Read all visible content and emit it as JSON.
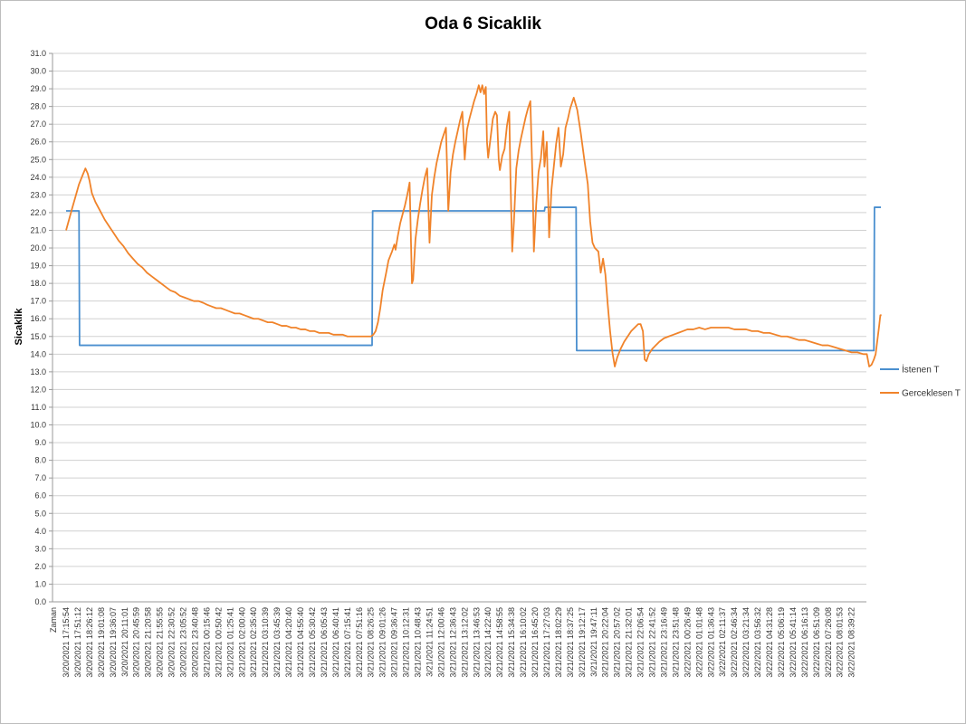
{
  "chart_data": {
    "type": "line",
    "title": "Oda 6 Sicaklik",
    "xlabel": "Zaman",
    "ylabel": "Sicaklik",
    "ylim": [
      0,
      31
    ],
    "ytick_step": 1,
    "grid": "horizontal",
    "legend_position": "right",
    "x_tick_labels": [
      "3/20/2021 17:15:54",
      "3/20/2021 17:51:12",
      "3/20/2021 18:26:12",
      "3/20/2021 19:01:08",
      "3/20/2021 19:36:07",
      "3/20/2021 20:11:01",
      "3/20/2021 20:45:59",
      "3/20/2021 21:20:58",
      "3/20/2021 21:55:55",
      "3/20/2021 22:30:52",
      "3/20/2021 23:05:52",
      "3/20/2021 23:40:48",
      "3/21/2021 00:15:46",
      "3/21/2021 00:50:42",
      "3/21/2021 01:25:41",
      "3/21/2021 02:00:40",
      "3/21/2021 02:35:40",
      "3/21/2021 03:10:39",
      "3/21/2021 03:45:39",
      "3/21/2021 04:20:40",
      "3/21/2021 04:55:40",
      "3/21/2021 05:30:42",
      "3/21/2021 06:05:43",
      "3/21/2021 06:40:41",
      "3/21/2021 07:15:41",
      "3/21/2021 07:51:16",
      "3/21/2021 08:26:25",
      "3/21/2021 09:01:26",
      "3/21/2021 09:36:47",
      "3/21/2021 10:12:31",
      "3/21/2021 10:48:43",
      "3/21/2021 11:24:51",
      "3/21/2021 12:00:46",
      "3/21/2021 12:36:43",
      "3/21/2021 13:12:02",
      "3/21/2021 13:46:53",
      "3/21/2021 14:22:40",
      "3/21/2021 14:58:55",
      "3/21/2021 15:34:38",
      "3/21/2021 16:10:02",
      "3/21/2021 16:45:20",
      "3/21/2021 17:27:03",
      "3/21/2021 18:02:29",
      "3/21/2021 18:37:25",
      "3/21/2021 19:12:17",
      "3/21/2021 19:47:11",
      "3/21/2021 20:22:04",
      "3/21/2021 20:57:02",
      "3/21/2021 21:32:01",
      "3/21/2021 22:06:54",
      "3/21/2021 22:41:52",
      "3/21/2021 23:16:49",
      "3/21/2021 23:51:48",
      "3/22/2021 00:26:49",
      "3/22/2021 01:01:48",
      "3/22/2021 01:36:43",
      "3/22/2021 02:11:37",
      "3/22/2021 02:46:34",
      "3/22/2021 03:21:34",
      "3/22/2021 03:56:32",
      "3/22/2021 04:31:28",
      "3/22/2021 05:06:19",
      "3/22/2021 05:41:14",
      "3/22/2021 06:16:13",
      "3/22/2021 06:51:09",
      "3/22/2021 07:26:08",
      "3/22/2021 08:01:53",
      "3/22/2021 08:39:22"
    ],
    "series": [
      {
        "name": "İstenen T",
        "color": "#4a8fcf",
        "points": [
          [
            0,
            22.1
          ],
          [
            1.1,
            22.1
          ],
          [
            1.15,
            14.5
          ],
          [
            26.1,
            14.5
          ],
          [
            26.15,
            22.1
          ],
          [
            40.8,
            22.1
          ],
          [
            40.85,
            22.3
          ],
          [
            43.5,
            22.3
          ],
          [
            43.55,
            14.2
          ],
          [
            68.9,
            14.2
          ],
          [
            68.95,
            22.3
          ],
          [
            69.5,
            22.3
          ]
        ]
      },
      {
        "name": "Gerceklesen T",
        "color": "#f0832a",
        "points": [
          [
            0,
            21.0
          ],
          [
            0.25,
            21.6
          ],
          [
            0.5,
            22.2
          ],
          [
            0.8,
            22.9
          ],
          [
            1.1,
            23.6
          ],
          [
            1.4,
            24.1
          ],
          [
            1.65,
            24.5
          ],
          [
            1.85,
            24.2
          ],
          [
            2.0,
            23.8
          ],
          [
            2.2,
            23.1
          ],
          [
            2.5,
            22.6
          ],
          [
            2.9,
            22.1
          ],
          [
            3.3,
            21.6
          ],
          [
            3.7,
            21.2
          ],
          [
            4.1,
            20.8
          ],
          [
            4.5,
            20.4
          ],
          [
            4.9,
            20.1
          ],
          [
            5.3,
            19.7
          ],
          [
            5.7,
            19.4
          ],
          [
            6.1,
            19.1
          ],
          [
            6.5,
            18.9
          ],
          [
            6.9,
            18.6
          ],
          [
            7.3,
            18.4
          ],
          [
            7.7,
            18.2
          ],
          [
            8.1,
            18.0
          ],
          [
            8.5,
            17.8
          ],
          [
            8.9,
            17.6
          ],
          [
            9.3,
            17.5
          ],
          [
            9.7,
            17.3
          ],
          [
            10.1,
            17.2
          ],
          [
            10.5,
            17.1
          ],
          [
            10.9,
            17.0
          ],
          [
            11.3,
            17.0
          ],
          [
            11.7,
            16.9
          ],
          [
            12.0,
            16.8
          ],
          [
            12.4,
            16.7
          ],
          [
            12.8,
            16.6
          ],
          [
            13.2,
            16.6
          ],
          [
            13.6,
            16.5
          ],
          [
            14.0,
            16.4
          ],
          [
            14.4,
            16.3
          ],
          [
            14.8,
            16.3
          ],
          [
            15.2,
            16.2
          ],
          [
            15.6,
            16.1
          ],
          [
            16.0,
            16.0
          ],
          [
            16.4,
            16.0
          ],
          [
            16.8,
            15.9
          ],
          [
            17.2,
            15.8
          ],
          [
            17.6,
            15.8
          ],
          [
            18.0,
            15.7
          ],
          [
            18.4,
            15.6
          ],
          [
            18.8,
            15.6
          ],
          [
            19.2,
            15.5
          ],
          [
            19.6,
            15.5
          ],
          [
            20.0,
            15.4
          ],
          [
            20.4,
            15.4
          ],
          [
            20.8,
            15.3
          ],
          [
            21.2,
            15.3
          ],
          [
            21.6,
            15.2
          ],
          [
            22.0,
            15.2
          ],
          [
            22.4,
            15.2
          ],
          [
            22.8,
            15.1
          ],
          [
            23.2,
            15.1
          ],
          [
            23.6,
            15.1
          ],
          [
            24.0,
            15.0
          ],
          [
            24.4,
            15.0
          ],
          [
            24.8,
            15.0
          ],
          [
            25.2,
            15.0
          ],
          [
            25.6,
            15.0
          ],
          [
            26.0,
            15.0
          ],
          [
            26.2,
            15.1
          ],
          [
            26.4,
            15.3
          ],
          [
            26.6,
            15.8
          ],
          [
            26.8,
            16.6
          ],
          [
            27.0,
            17.6
          ],
          [
            27.3,
            18.6
          ],
          [
            27.5,
            19.3
          ],
          [
            27.8,
            19.8
          ],
          [
            28.0,
            20.2
          ],
          [
            28.1,
            19.9
          ],
          [
            28.3,
            20.7
          ],
          [
            28.5,
            21.4
          ],
          [
            28.7,
            21.9
          ],
          [
            28.9,
            22.4
          ],
          [
            29.1,
            23.0
          ],
          [
            29.3,
            23.7
          ],
          [
            29.5,
            18.0
          ],
          [
            29.6,
            18.2
          ],
          [
            29.8,
            20.5
          ],
          [
            30.0,
            21.6
          ],
          [
            30.2,
            22.5
          ],
          [
            30.4,
            23.3
          ],
          [
            30.6,
            24.0
          ],
          [
            30.8,
            24.5
          ],
          [
            31.0,
            20.3
          ],
          [
            31.2,
            23.0
          ],
          [
            31.4,
            24.0
          ],
          [
            31.6,
            24.8
          ],
          [
            31.8,
            25.4
          ],
          [
            32.0,
            26.0
          ],
          [
            32.2,
            26.4
          ],
          [
            32.4,
            26.8
          ],
          [
            32.6,
            22.1
          ],
          [
            32.8,
            24.3
          ],
          [
            33.0,
            25.3
          ],
          [
            33.2,
            26.0
          ],
          [
            33.4,
            26.6
          ],
          [
            33.6,
            27.2
          ],
          [
            33.8,
            27.7
          ],
          [
            34.0,
            25.0
          ],
          [
            34.2,
            26.7
          ],
          [
            34.4,
            27.3
          ],
          [
            34.6,
            27.8
          ],
          [
            34.8,
            28.3
          ],
          [
            35.0,
            28.7
          ],
          [
            35.2,
            29.2
          ],
          [
            35.35,
            28.8
          ],
          [
            35.5,
            29.2
          ],
          [
            35.65,
            28.7
          ],
          [
            35.8,
            29.1
          ],
          [
            35.9,
            26.0
          ],
          [
            36.0,
            25.1
          ],
          [
            36.2,
            26.2
          ],
          [
            36.4,
            27.3
          ],
          [
            36.6,
            27.7
          ],
          [
            36.75,
            27.5
          ],
          [
            36.9,
            25.0
          ],
          [
            37.0,
            24.4
          ],
          [
            37.2,
            25.2
          ],
          [
            37.4,
            25.6
          ],
          [
            37.6,
            26.9
          ],
          [
            37.8,
            27.7
          ],
          [
            37.9,
            24.0
          ],
          [
            38.05,
            19.8
          ],
          [
            38.2,
            21.5
          ],
          [
            38.4,
            24.5
          ],
          [
            38.6,
            25.5
          ],
          [
            38.8,
            26.2
          ],
          [
            39.0,
            26.8
          ],
          [
            39.2,
            27.4
          ],
          [
            39.4,
            27.9
          ],
          [
            39.6,
            28.3
          ],
          [
            39.8,
            23.5
          ],
          [
            39.9,
            19.8
          ],
          [
            40.1,
            22.5
          ],
          [
            40.3,
            24.3
          ],
          [
            40.5,
            25.1
          ],
          [
            40.7,
            26.6
          ],
          [
            40.8,
            24.6
          ],
          [
            41.0,
            26.0
          ],
          [
            41.2,
            20.6
          ],
          [
            41.4,
            23.3
          ],
          [
            41.6,
            24.6
          ],
          [
            41.8,
            25.9
          ],
          [
            42.0,
            26.8
          ],
          [
            42.2,
            24.6
          ],
          [
            42.4,
            25.3
          ],
          [
            42.6,
            26.8
          ],
          [
            42.8,
            27.3
          ],
          [
            43.0,
            27.9
          ],
          [
            43.3,
            28.5
          ],
          [
            43.6,
            27.8
          ],
          [
            43.9,
            26.5
          ],
          [
            44.2,
            25.0
          ],
          [
            44.5,
            23.6
          ],
          [
            44.7,
            21.5
          ],
          [
            44.9,
            20.3
          ],
          [
            45.1,
            20.0
          ],
          [
            45.4,
            19.8
          ],
          [
            45.6,
            18.6
          ],
          [
            45.8,
            19.4
          ],
          [
            46.0,
            18.5
          ],
          [
            46.2,
            16.8
          ],
          [
            46.4,
            15.3
          ],
          [
            46.6,
            14.1
          ],
          [
            46.8,
            13.3
          ],
          [
            47.0,
            13.8
          ],
          [
            47.3,
            14.3
          ],
          [
            47.6,
            14.7
          ],
          [
            47.9,
            15.0
          ],
          [
            48.2,
            15.3
          ],
          [
            48.5,
            15.5
          ],
          [
            48.8,
            15.7
          ],
          [
            49.0,
            15.7
          ],
          [
            49.2,
            15.3
          ],
          [
            49.35,
            13.7
          ],
          [
            49.5,
            13.6
          ],
          [
            49.7,
            14.0
          ],
          [
            50.0,
            14.3
          ],
          [
            50.3,
            14.5
          ],
          [
            50.6,
            14.7
          ],
          [
            51.0,
            14.9
          ],
          [
            51.4,
            15.0
          ],
          [
            51.8,
            15.1
          ],
          [
            52.2,
            15.2
          ],
          [
            52.6,
            15.3
          ],
          [
            53.0,
            15.4
          ],
          [
            53.5,
            15.4
          ],
          [
            54.0,
            15.5
          ],
          [
            54.5,
            15.4
          ],
          [
            55.0,
            15.5
          ],
          [
            55.5,
            15.5
          ],
          [
            56.0,
            15.5
          ],
          [
            56.5,
            15.5
          ],
          [
            57.0,
            15.4
          ],
          [
            57.5,
            15.4
          ],
          [
            58.0,
            15.4
          ],
          [
            58.5,
            15.3
          ],
          [
            59.0,
            15.3
          ],
          [
            59.5,
            15.2
          ],
          [
            60.0,
            15.2
          ],
          [
            60.5,
            15.1
          ],
          [
            61.0,
            15.0
          ],
          [
            61.5,
            15.0
          ],
          [
            62.0,
            14.9
          ],
          [
            62.5,
            14.8
          ],
          [
            63.0,
            14.8
          ],
          [
            63.5,
            14.7
          ],
          [
            64.0,
            14.6
          ],
          [
            64.5,
            14.5
          ],
          [
            65.0,
            14.5
          ],
          [
            65.5,
            14.4
          ],
          [
            66.0,
            14.3
          ],
          [
            66.5,
            14.2
          ],
          [
            67.0,
            14.1
          ],
          [
            67.5,
            14.1
          ],
          [
            68.0,
            14.0
          ],
          [
            68.3,
            14.0
          ],
          [
            68.5,
            13.3
          ],
          [
            68.7,
            13.4
          ],
          [
            68.9,
            13.7
          ],
          [
            69.05,
            14.0
          ],
          [
            69.2,
            14.8
          ],
          [
            69.35,
            15.6
          ],
          [
            69.45,
            16.2
          ],
          [
            69.55,
            16.2
          ]
        ]
      }
    ]
  }
}
